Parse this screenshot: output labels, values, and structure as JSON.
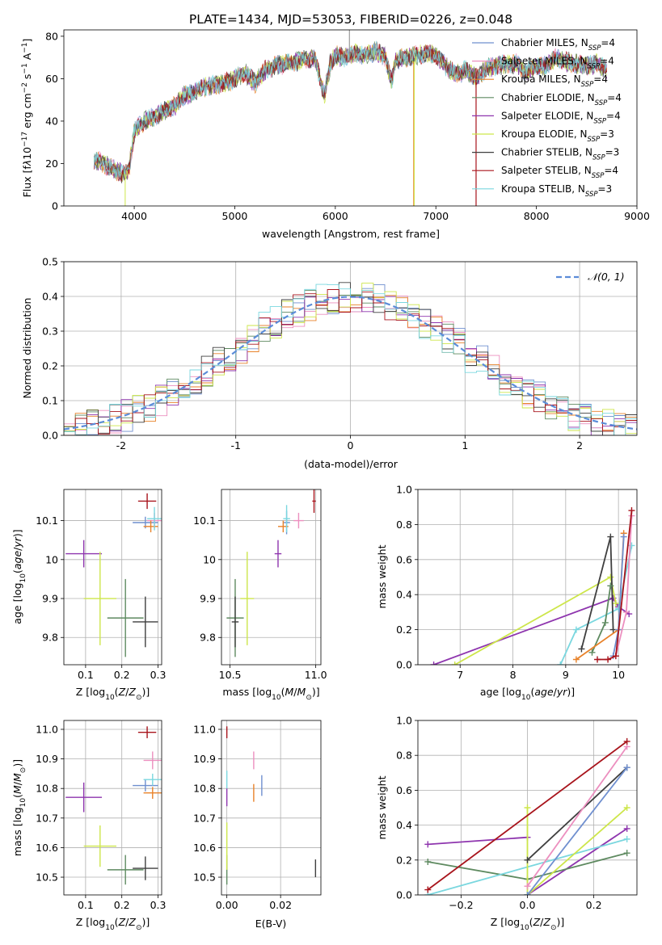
{
  "figure": {
    "title": "PLATE=1434, MJD=53053, FIBERID=0226, z=0.048"
  },
  "colors": {
    "Chabrier MILES": "#6f8fcf",
    "Salpeter MILES": "#ec8fbf",
    "Kroupa MILES": "#e8822a",
    "Chabrier ELODIE": "#5e8a60",
    "Salpeter ELODIE": "#8e35ae",
    "Kroupa ELODIE": "#cde64a",
    "Chabrier STELIB": "#3f3f3f",
    "Salpeter STELIB": "#a8141c",
    "Kroupa STELIB": "#7ad7df"
  },
  "chart_data": [
    {
      "id": "spectrum",
      "type": "line",
      "xlabel": "wavelength [Angstrom, rest frame]",
      "ylabel_html": "Flux [f<tspan font-style='italic'>λ</tspan>10<tspan baseline-shift='super' font-size='9'>−17</tspan> erg cm<tspan baseline-shift='super' font-size='9'>−2</tspan> s<tspan baseline-shift='super' font-size='9'>−1</tspan> A<tspan baseline-shift='super' font-size='9'>−1</tspan>]",
      "xlim": [
        3300,
        9000
      ],
      "ylim": [
        0,
        83
      ],
      "xticks": [
        4000,
        5000,
        6000,
        7000,
        8000,
        9000
      ],
      "yticks": [
        0,
        20,
        40,
        60,
        80
      ],
      "envelope": {
        "x": [
          3600,
          3700,
          3800,
          3900,
          3950,
          4000,
          4100,
          4200,
          4300,
          4400,
          4500,
          4600,
          4700,
          4800,
          4900,
          5000,
          5100,
          5200,
          5300,
          5400,
          5500,
          5600,
          5700,
          5800,
          5890,
          5950,
          6000,
          6100,
          6200,
          6300,
          6400,
          6500,
          6560,
          6600,
          6700,
          6800,
          6900,
          7000,
          7100,
          7200,
          7300,
          7400,
          7500,
          7600,
          7700,
          7800,
          7900,
          8000,
          8100,
          8200,
          8300,
          8400,
          8500,
          8600,
          8700
        ],
        "y": [
          22,
          20,
          17,
          15,
          18,
          35,
          40,
          42,
          45,
          47,
          52,
          54,
          56,
          57,
          58,
          60,
          63,
          58,
          64,
          66,
          67,
          68,
          69,
          70,
          52,
          67,
          71,
          70,
          72,
          71,
          73,
          70,
          58,
          69,
          70,
          71,
          72,
          71,
          66,
          62,
          64,
          60,
          65,
          66,
          67,
          67,
          63,
          66,
          66,
          70,
          68,
          67,
          66,
          67,
          64
        ]
      },
      "legend": [
        "Chabrier MILES, N_SSP=4",
        "Salpeter MILES, N_SSP=4",
        "Kroupa MILES, N_SSP=4",
        "Chabrier ELODIE, N_SSP=4",
        "Salpeter ELODIE, N_SSP=4",
        "Kroupa ELODIE, N_SSP=3",
        "Chabrier STELIB, N_SSP=3",
        "Salpeter STELIB, N_SSP=4",
        "Kroupa STELIB, N_SSP=3"
      ]
    },
    {
      "id": "residuals",
      "type": "line",
      "xlabel": "(data-model)/error",
      "ylabel": "Normed distribution",
      "xlim": [
        -2.5,
        2.5
      ],
      "ylim": [
        0,
        0.5
      ],
      "xticks": [
        -2,
        -1,
        0,
        1,
        2
      ],
      "yticks": [
        0.0,
        0.1,
        0.2,
        0.3,
        0.4,
        0.5
      ],
      "ytick_labels": [
        "0.0",
        "0.1",
        "0.2",
        "0.3",
        "0.4",
        "0.5"
      ],
      "grid": true,
      "legend": "𝒩(0, 1)"
    },
    {
      "id": "age-vs-Z",
      "type": "scatter",
      "xlabel": "Z [log10(Z/Z⊙)]",
      "ylabel": "age  [log10(age/yr)]",
      "xlim": [
        0.04,
        0.31
      ],
      "ylim": [
        9.73,
        10.18
      ],
      "xticks": [
        0.1,
        0.2,
        0.3
      ],
      "yticks": [
        9.8,
        9.9,
        10.0,
        10.1
      ],
      "grid": true,
      "points": [
        {
          "model": "Chabrier MILES",
          "x": 0.265,
          "y": 10.095,
          "xerr": 0.035,
          "yerr": 0.015
        },
        {
          "model": "Salpeter MILES",
          "x": 0.29,
          "y": 10.1,
          "xerr": 0.02,
          "yerr": 0.02
        },
        {
          "model": "Kroupa MILES",
          "x": 0.28,
          "y": 10.085,
          "xerr": 0.02,
          "yerr": 0.015
        },
        {
          "model": "Chabrier ELODIE",
          "x": 0.21,
          "y": 9.85,
          "xerr": 0.05,
          "yerr": 0.1
        },
        {
          "model": "Salpeter ELODIE",
          "x": 0.095,
          "y": 10.015,
          "xerr": 0.05,
          "yerr": 0.035
        },
        {
          "model": "Kroupa ELODIE",
          "x": 0.14,
          "y": 9.9,
          "xerr": 0.045,
          "yerr": 0.12
        },
        {
          "model": "Chabrier STELIB",
          "x": 0.265,
          "y": 9.84,
          "xerr": 0.035,
          "yerr": 0.065
        },
        {
          "model": "Salpeter STELIB",
          "x": 0.27,
          "y": 10.15,
          "xerr": 0.025,
          "yerr": 0.02
        },
        {
          "model": "Kroupa STELIB",
          "x": 0.29,
          "y": 10.105,
          "xerr": 0.02,
          "yerr": 0.03
        }
      ]
    },
    {
      "id": "age-vs-mass",
      "type": "scatter",
      "xlabel": "mass [log10(M/M⊙)]",
      "xlim": [
        10.45,
        11.03
      ],
      "ylim": [
        9.73,
        10.18
      ],
      "xticks": [
        10.5,
        11.0
      ],
      "xtick_labels": [
        "10.5",
        "11.0"
      ],
      "yticks": [
        9.8,
        9.9,
        10.0,
        10.1
      ],
      "grid": true,
      "points": [
        {
          "model": "Chabrier MILES",
          "x": 10.83,
          "y": 10.095,
          "xerr": 0.02,
          "yerr": 0.03
        },
        {
          "model": "Salpeter MILES",
          "x": 10.9,
          "y": 10.1,
          "xerr": 0.03,
          "yerr": 0.02
        },
        {
          "model": "Kroupa MILES",
          "x": 10.81,
          "y": 10.085,
          "xerr": 0.03,
          "yerr": 0.015
        },
        {
          "model": "Chabrier ELODIE",
          "x": 10.53,
          "y": 9.85,
          "xerr": 0.05,
          "yerr": 0.1
        },
        {
          "model": "Salpeter ELODIE",
          "x": 10.78,
          "y": 10.015,
          "xerr": 0.02,
          "yerr": 0.035
        },
        {
          "model": "Kroupa ELODIE",
          "x": 10.6,
          "y": 9.9,
          "xerr": 0.04,
          "yerr": 0.12
        },
        {
          "model": "Chabrier STELIB",
          "x": 10.53,
          "y": 9.84,
          "xerr": 0.02,
          "yerr": 0.065
        },
        {
          "model": "Salpeter STELIB",
          "x": 10.99,
          "y": 10.15,
          "xerr": 0.01,
          "yerr": 0.03
        },
        {
          "model": "Kroupa STELIB",
          "x": 10.83,
          "y": 10.105,
          "xerr": 0.02,
          "yerr": 0.035
        }
      ]
    },
    {
      "id": "massweight-vs-age",
      "type": "line",
      "xlabel": "age  [log10(age/yr)]",
      "ylabel": "mass weight",
      "xlim": [
        6.2,
        10.35
      ],
      "ylim": [
        0,
        1.0
      ],
      "xticks": [
        7,
        8,
        9,
        10
      ],
      "yticks": [
        0.0,
        0.2,
        0.4,
        0.6,
        0.8,
        1.0
      ],
      "ytick_labels": [
        "0.0",
        "0.2",
        "0.4",
        "0.6",
        "0.8",
        "1.0"
      ],
      "grid": true,
      "series": [
        {
          "model": "Salpeter ELODIE",
          "x": [
            6.5,
            9.9,
            10.0,
            10.2
          ],
          "y": [
            0.0,
            0.38,
            0.33,
            0.29
          ]
        },
        {
          "model": "Kroupa ELODIE",
          "x": [
            6.9,
            9.85,
            9.95
          ],
          "y": [
            0.0,
            0.5,
            0.35
          ]
        },
        {
          "model": "Kroupa STELIB",
          "x": [
            8.9,
            9.2,
            10.0,
            10.25
          ],
          "y": [
            0.0,
            0.2,
            0.32,
            0.68
          ]
        },
        {
          "model": "Chabrier STELIB",
          "x": [
            9.3,
            9.85,
            9.9
          ],
          "y": [
            0.09,
            0.73,
            0.2
          ]
        },
        {
          "model": "Chabrier ELODIE",
          "x": [
            9.5,
            9.75,
            9.85
          ],
          "y": [
            0.07,
            0.24,
            0.45
          ]
        },
        {
          "model": "Kroupa MILES",
          "x": [
            9.2,
            10.0,
            10.1
          ],
          "y": [
            0.03,
            0.2,
            0.75
          ]
        },
        {
          "model": "Chabrier MILES",
          "x": [
            9.9,
            10.0,
            10.1
          ],
          "y": [
            0.05,
            0.2,
            0.73
          ]
        },
        {
          "model": "Salpeter MILES",
          "x": [
            9.95,
            10.15,
            10.25
          ],
          "y": [
            0.05,
            0.3,
            0.85
          ]
        },
        {
          "model": "Salpeter STELIB",
          "x": [
            9.6,
            9.8,
            9.95,
            10.25
          ],
          "y": [
            0.03,
            0.03,
            0.05,
            0.88
          ]
        }
      ]
    },
    {
      "id": "mass-vs-Z",
      "type": "scatter",
      "xlabel": "Z [log10(Z/Z⊙)]",
      "ylabel": "mass [log10(M/M⊙)]",
      "xlim": [
        0.04,
        0.31
      ],
      "ylim": [
        10.44,
        11.03
      ],
      "xticks": [
        0.1,
        0.2,
        0.3
      ],
      "yticks": [
        10.5,
        10.6,
        10.7,
        10.8,
        10.9,
        11.0
      ],
      "ytick_labels": [
        "10.5",
        "10.6",
        "10.7",
        "10.8",
        "10.9",
        "11.0"
      ],
      "grid": true,
      "points": [
        {
          "model": "Chabrier MILES",
          "x": 0.265,
          "y": 10.81,
          "xerr": 0.035,
          "yerr": 0.02
        },
        {
          "model": "Salpeter MILES",
          "x": 0.285,
          "y": 10.895,
          "xerr": 0.025,
          "yerr": 0.03
        },
        {
          "model": "Kroupa MILES",
          "x": 0.285,
          "y": 10.785,
          "xerr": 0.025,
          "yerr": 0.02
        },
        {
          "model": "Chabrier ELODIE",
          "x": 0.21,
          "y": 10.525,
          "xerr": 0.05,
          "yerr": 0.05
        },
        {
          "model": "Salpeter ELODIE",
          "x": 0.095,
          "y": 10.77,
          "xerr": 0.05,
          "yerr": 0.05
        },
        {
          "model": "Kroupa ELODIE",
          "x": 0.14,
          "y": 10.605,
          "xerr": 0.045,
          "yerr": 0.07
        },
        {
          "model": "Chabrier STELIB",
          "x": 0.265,
          "y": 10.53,
          "xerr": 0.035,
          "yerr": 0.04
        },
        {
          "model": "Salpeter STELIB",
          "x": 0.27,
          "y": 10.99,
          "xerr": 0.025,
          "yerr": 0.02
        },
        {
          "model": "Kroupa STELIB",
          "x": 0.285,
          "y": 10.83,
          "xerr": 0.025,
          "yerr": 0.02
        }
      ]
    },
    {
      "id": "mass-vs-ebv",
      "type": "scatter",
      "xlabel": "E(B-V)",
      "xlim": [
        -0.002,
        0.035
      ],
      "ylim": [
        10.44,
        11.03
      ],
      "xticks": [
        0.0,
        0.02
      ],
      "xtick_labels": [
        "0.00",
        "0.02"
      ],
      "yticks": [
        10.5,
        10.6,
        10.7,
        10.8,
        10.9,
        11.0
      ],
      "ytick_labels": [
        "10.5",
        "10.6",
        "10.7",
        "10.8",
        "10.9",
        "11.0"
      ],
      "grid": true,
      "points": [
        {
          "model": "Chabrier MILES",
          "x": 0.013,
          "y": 10.81,
          "xerr": 0.0,
          "yerr": 0.035
        },
        {
          "model": "Salpeter MILES",
          "x": 0.01,
          "y": 10.895,
          "xerr": 0.0,
          "yerr": 0.03
        },
        {
          "model": "Kroupa MILES",
          "x": 0.01,
          "y": 10.785,
          "xerr": 0.0,
          "yerr": 0.03
        },
        {
          "model": "Chabrier ELODIE",
          "x": 0.0,
          "y": 10.525,
          "xerr": 0.0,
          "yerr": 0.05
        },
        {
          "model": "Salpeter ELODIE",
          "x": 0.0,
          "y": 10.77,
          "xerr": 0.0,
          "yerr": 0.03
        },
        {
          "model": "Kroupa ELODIE",
          "x": 0.0,
          "y": 10.605,
          "xerr": 0.0,
          "yerr": 0.08
        },
        {
          "model": "Chabrier STELIB",
          "x": 0.033,
          "y": 10.53,
          "xerr": 0.0,
          "yerr": 0.03
        },
        {
          "model": "Salpeter STELIB",
          "x": 0.0,
          "y": 10.99,
          "xerr": 0.0,
          "yerr": 0.02
        },
        {
          "model": "Kroupa STELIB",
          "x": 0.0,
          "y": 10.83,
          "xerr": 0.0,
          "yerr": 0.03
        }
      ]
    },
    {
      "id": "massweight-vs-Z",
      "type": "line",
      "xlabel": "Z [log10(Z/Z⊙)]",
      "ylabel": "mass weight",
      "xlim": [
        -0.33,
        0.33
      ],
      "ylim": [
        0,
        1.0
      ],
      "xticks": [
        -0.2,
        0.0,
        0.2
      ],
      "xtick_labels": [
        "−0.2",
        "0.0",
        "0.2"
      ],
      "yticks": [
        0.0,
        0.2,
        0.4,
        0.6,
        0.8,
        1.0
      ],
      "ytick_labels": [
        "0.0",
        "0.2",
        "0.4",
        "0.6",
        "0.8",
        "1.0"
      ],
      "grid": true,
      "series": [
        {
          "model": "Salpeter ELODIE",
          "x": [
            -0.3,
            0.0
          ],
          "y": [
            0.29,
            0.33
          ]
        },
        {
          "model": "Salpeter ELODIE",
          "x": [
            0.0,
            0.3
          ],
          "y": [
            0.0,
            0.38
          ]
        },
        {
          "model": "Chabrier ELODIE",
          "x": [
            -0.3,
            0.0,
            0.3
          ],
          "y": [
            0.19,
            0.09,
            0.24
          ]
        },
        {
          "model": "Kroupa STELIB",
          "x": [
            -0.3,
            0.3
          ],
          "y": [
            0.0,
            0.32
          ]
        },
        {
          "model": "Kroupa ELODIE",
          "x": [
            0.0,
            0.0,
            0.3
          ],
          "y": [
            0.5,
            0.0,
            0.5
          ]
        },
        {
          "model": "Chabrier STELIB",
          "x": [
            0.0,
            0.3
          ],
          "y": [
            0.2,
            0.73
          ]
        },
        {
          "model": "Chabrier MILES",
          "x": [
            0.0,
            0.3
          ],
          "y": [
            0.0,
            0.73
          ]
        },
        {
          "model": "Salpeter MILES",
          "x": [
            0.0,
            0.3
          ],
          "y": [
            0.05,
            0.85
          ]
        },
        {
          "model": "Salpeter STELIB",
          "x": [
            -0.3,
            0.3
          ],
          "y": [
            0.03,
            0.88
          ]
        }
      ]
    }
  ]
}
